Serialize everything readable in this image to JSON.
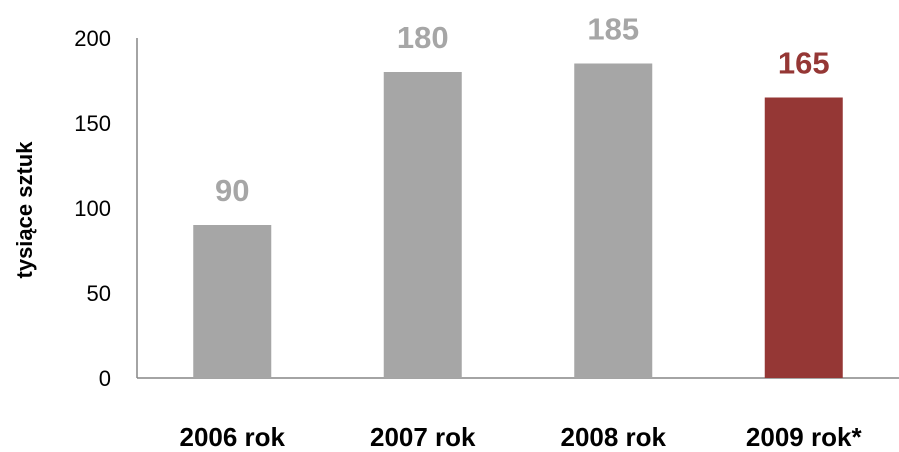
{
  "chart_data": {
    "type": "bar",
    "categories": [
      "2006 rok",
      "2007 rok",
      "2008 rok",
      "2009 rok*"
    ],
    "values": [
      90,
      180,
      185,
      165
    ],
    "data_labels": [
      "90",
      "180",
      "185",
      "165"
    ],
    "ylabel": "tysiące sztuk",
    "xlabel": "",
    "ylim": [
      0,
      200
    ],
    "yticks": [
      0,
      50,
      100,
      150,
      200
    ],
    "ytick_labels": [
      "0",
      "50",
      "100",
      "150",
      "200"
    ],
    "grid": false,
    "legend": "none",
    "colors": {
      "default_bar": "#a6a6a6",
      "highlight_bar": "#953735",
      "default_label": "#a6a6a6",
      "highlight_label": "#953735",
      "axis": "#868686"
    },
    "highlight_index": 3
  }
}
